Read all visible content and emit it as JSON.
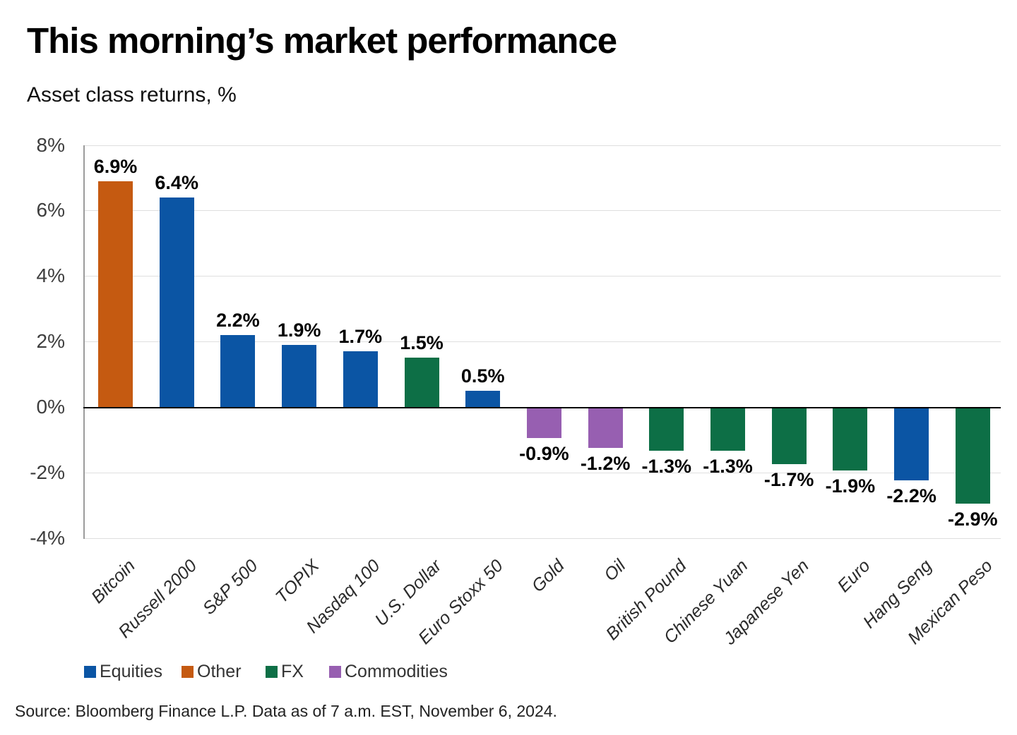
{
  "title": "This morning’s market performance",
  "subtitle": "Asset class returns, %",
  "source": "Source: Bloomberg Finance L.P. Data as of 7 a.m. EST, November 6, 2024.",
  "colors": {
    "equities": "#0B55A4",
    "other": "#C55A11",
    "fx": "#0D6F46",
    "commodities": "#975FB1",
    "gridline": "#DFDFDF",
    "zero_line": "#000000",
    "axis_line": "#9B9B9B",
    "tick_text": "#3D3D3D"
  },
  "legend": [
    {
      "label": "Equities",
      "key": "equities"
    },
    {
      "label": "Other",
      "key": "other"
    },
    {
      "label": "FX",
      "key": "fx"
    },
    {
      "label": "Commodities",
      "key": "commodities"
    }
  ],
  "chart_data": {
    "type": "bar",
    "title": "This morning’s market performance",
    "subtitle": "Asset class returns, %",
    "categories": [
      "Bitcoin",
      "Russell 2000",
      "S&P 500",
      "TOPIX",
      "Nasdaq 100",
      "U.S. Dollar",
      "Euro Stoxx 50",
      "Gold",
      "Oil",
      "British Pound",
      "Chinese Yuan",
      "Japanese Yen",
      "Euro",
      "Hang Seng",
      "Mexican Peso"
    ],
    "values": [
      6.9,
      6.4,
      2.2,
      1.9,
      1.7,
      1.5,
      0.5,
      -0.9,
      -1.2,
      -1.3,
      -1.3,
      -1.7,
      -1.9,
      -2.2,
      -2.9
    ],
    "value_labels": [
      "6.9%",
      "6.4%",
      "2.2%",
      "1.9%",
      "1.7%",
      "1.5%",
      "0.5%",
      "-0.9%",
      "-1.2%",
      "-1.3%",
      "-1.3%",
      "-1.7%",
      "-1.9%",
      "-2.2%",
      "-2.9%"
    ],
    "groups": [
      "other",
      "equities",
      "equities",
      "equities",
      "equities",
      "fx",
      "equities",
      "commodities",
      "commodities",
      "fx",
      "fx",
      "fx",
      "fx",
      "equities",
      "fx"
    ],
    "ylabel": "Asset class returns, %",
    "ylim": [
      -4,
      8
    ],
    "yticks": [
      "8%",
      "6%",
      "4%",
      "2%",
      "0%",
      "-2%",
      "-4%"
    ],
    "ytick_values": [
      8,
      6,
      4,
      2,
      0,
      -2,
      -4
    ],
    "grid": true,
    "legend_position": "bottom"
  }
}
